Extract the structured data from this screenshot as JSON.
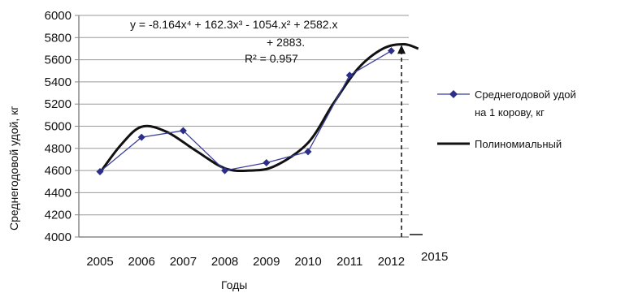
{
  "chart_data": {
    "type": "line",
    "xlabel": "Годы",
    "ylabel": "Среднегодовой удой, кг",
    "categories": [
      "2005",
      "2006",
      "2007",
      "2008",
      "2009",
      "2010",
      "2011",
      "2012"
    ],
    "extra_x_label": "2015",
    "ylim": [
      4000,
      6000
    ],
    "ytick_step": 200,
    "grid": "horizontal",
    "legend_position": "right",
    "series": [
      {
        "name": "Среднегодовой удой на 1 корову, кг",
        "values": [
          4590,
          4900,
          4960,
          4600,
          4670,
          4770,
          5460,
          5680
        ],
        "color": "#2b2f8a",
        "marker": "diamond"
      },
      {
        "name": "Полиномиальный",
        "kind": "trendline",
        "color": "#111111"
      }
    ],
    "legend": [
      {
        "line1": "Среднегодовой удой",
        "line2": "на 1 корову, кг"
      },
      {
        "line1": "Полиномиальный",
        "line2": ""
      }
    ],
    "equation": {
      "line1": "y = -8.164x⁴ + 162.3x³ - 1054.x² + 2582.x",
      "line2": "+ 2883.",
      "line3": "R² = 0.957"
    },
    "forecast_value": 5720
  }
}
